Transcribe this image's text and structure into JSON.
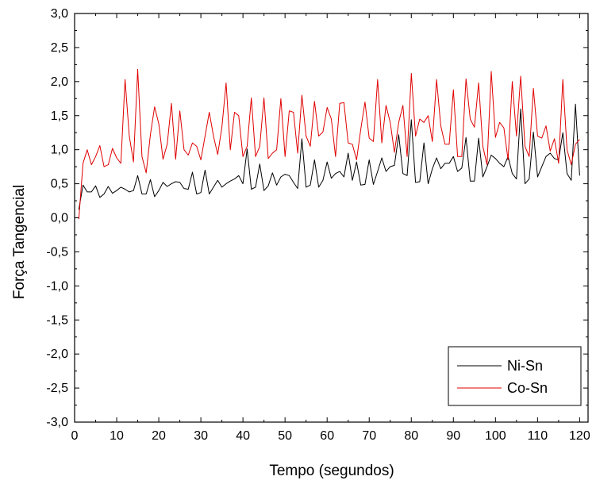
{
  "chart_data": {
    "type": "line",
    "title": "",
    "xlabel": "Tempo (segundos)",
    "ylabel": "Força Tangencial",
    "xlim": [
      0,
      122
    ],
    "ylim": [
      -3.0,
      3.0
    ],
    "xticks": [
      "0",
      "10",
      "20",
      "30",
      "40",
      "50",
      "60",
      "70",
      "80",
      "90",
      "100",
      "110",
      "120"
    ],
    "yticks": [
      "3,0",
      "2,5",
      "2,0",
      "1,5",
      "1,0",
      "0,5",
      "0,0",
      "-0,5",
      "-1,0",
      "-1,5",
      "-2,0",
      "-2,5",
      "-3,0"
    ],
    "grid": false,
    "legend_position": "bottom-right",
    "series": [
      {
        "name": "Ni-Sn",
        "color": "#000000",
        "x": [
          1,
          2,
          3,
          4,
          5,
          6,
          7,
          8,
          9,
          10,
          11,
          12,
          13,
          14,
          15,
          16,
          17,
          18,
          19,
          20,
          21,
          22,
          23,
          24,
          25,
          26,
          27,
          28,
          29,
          30,
          31,
          32,
          33,
          34,
          35,
          36,
          37,
          38,
          39,
          40,
          41,
          42,
          43,
          44,
          45,
          46,
          47,
          48,
          49,
          50,
          51,
          52,
          53,
          54,
          55,
          56,
          57,
          58,
          59,
          60,
          61,
          62,
          63,
          64,
          65,
          66,
          67,
          68,
          69,
          70,
          71,
          72,
          73,
          74,
          75,
          76,
          77,
          78,
          79,
          80,
          81,
          82,
          83,
          84,
          85,
          86,
          87,
          88,
          89,
          90,
          91,
          92,
          93,
          94,
          95,
          96,
          97,
          98,
          99,
          100,
          101,
          102,
          103,
          104,
          105,
          106,
          107,
          108,
          109,
          110,
          111,
          112,
          113,
          114,
          115,
          116,
          117,
          118,
          119,
          120
        ],
        "values": [
          0.12,
          0.48,
          0.38,
          0.38,
          0.47,
          0.3,
          0.35,
          0.46,
          0.36,
          0.4,
          0.45,
          0.42,
          0.38,
          0.4,
          0.62,
          0.35,
          0.35,
          0.56,
          0.31,
          0.4,
          0.52,
          0.46,
          0.5,
          0.53,
          0.52,
          0.43,
          0.42,
          0.67,
          0.35,
          0.37,
          0.7,
          0.35,
          0.45,
          0.55,
          0.45,
          0.5,
          0.54,
          0.57,
          0.62,
          0.5,
          1.01,
          0.42,
          0.45,
          0.79,
          0.4,
          0.47,
          0.66,
          0.48,
          0.6,
          0.64,
          0.62,
          0.52,
          0.43,
          1.16,
          0.45,
          0.48,
          0.85,
          0.45,
          0.55,
          0.82,
          0.58,
          0.65,
          0.68,
          0.6,
          0.95,
          0.55,
          0.82,
          0.48,
          0.49,
          0.85,
          0.49,
          0.68,
          0.88,
          0.68,
          0.75,
          0.77,
          1.22,
          0.65,
          0.62,
          1.44,
          0.52,
          0.53,
          1.1,
          0.5,
          0.72,
          0.88,
          0.72,
          0.8,
          0.8,
          0.9,
          0.68,
          0.73,
          1.18,
          0.54,
          0.54,
          1.17,
          0.6,
          0.75,
          0.92,
          0.87,
          0.8,
          0.75,
          0.9,
          0.65,
          0.57,
          1.6,
          0.5,
          0.57,
          1.26,
          0.6,
          0.75,
          0.9,
          0.95,
          0.87,
          0.85,
          1.25,
          0.65,
          0.55,
          1.67,
          0.62
        ]
      },
      {
        "name": "Co-Sn",
        "color": "#e00000",
        "x": [
          1,
          2,
          3,
          4,
          5,
          6,
          7,
          8,
          9,
          10,
          11,
          12,
          13,
          14,
          15,
          16,
          17,
          18,
          19,
          20,
          21,
          22,
          23,
          24,
          25,
          26,
          27,
          28,
          29,
          30,
          31,
          32,
          33,
          34,
          35,
          36,
          37,
          38,
          39,
          40,
          41,
          42,
          43,
          44,
          45,
          46,
          47,
          48,
          49,
          50,
          51,
          52,
          53,
          54,
          55,
          56,
          57,
          58,
          59,
          60,
          61,
          62,
          63,
          64,
          65,
          66,
          67,
          68,
          69,
          70,
          71,
          72,
          73,
          74,
          75,
          76,
          77,
          78,
          79,
          80,
          81,
          82,
          83,
          84,
          85,
          86,
          87,
          88,
          89,
          90,
          91,
          92,
          93,
          94,
          95,
          96,
          97,
          98,
          99,
          100,
          101,
          102,
          103,
          104,
          105,
          106,
          107,
          108,
          109,
          110,
          111,
          112,
          113,
          114,
          115,
          116,
          117,
          118,
          119,
          120
        ],
        "values": [
          -0.02,
          0.8,
          1.0,
          0.78,
          0.9,
          1.06,
          0.75,
          0.78,
          1.02,
          0.88,
          0.8,
          2.03,
          1.2,
          0.82,
          2.18,
          0.9,
          0.66,
          1.22,
          1.63,
          1.38,
          0.86,
          1.08,
          1.68,
          0.86,
          1.57,
          1.0,
          0.92,
          1.1,
          1.05,
          0.85,
          1.2,
          1.55,
          1.2,
          0.93,
          1.33,
          1.98,
          1.0,
          1.55,
          1.5,
          0.9,
          1.05,
          1.76,
          0.9,
          1.05,
          1.76,
          0.87,
          0.95,
          1.0,
          1.75,
          0.9,
          1.57,
          1.55,
          0.95,
          1.8,
          1.2,
          1.05,
          1.71,
          1.2,
          1.26,
          1.62,
          1.45,
          0.9,
          1.68,
          1.69,
          1.1,
          1.08,
          0.85,
          1.3,
          1.7,
          1.17,
          1.12,
          2.03,
          1.1,
          1.65,
          1.4,
          0.96,
          1.4,
          1.65,
          0.9,
          2.12,
          1.2,
          1.45,
          1.4,
          1.5,
          1.12,
          2.03,
          1.35,
          1.08,
          1.08,
          1.88,
          0.9,
          0.9,
          2.04,
          1.45,
          1.33,
          1.98,
          1.05,
          0.78,
          2.15,
          1.18,
          1.4,
          1.32,
          0.85,
          2.0,
          1.2,
          2.08,
          1.05,
          0.9,
          1.9,
          1.2,
          1.17,
          1.35,
          0.98,
          1.16,
          0.8,
          2.03,
          1.0,
          0.78,
          1.08,
          1.15
        ]
      }
    ]
  }
}
